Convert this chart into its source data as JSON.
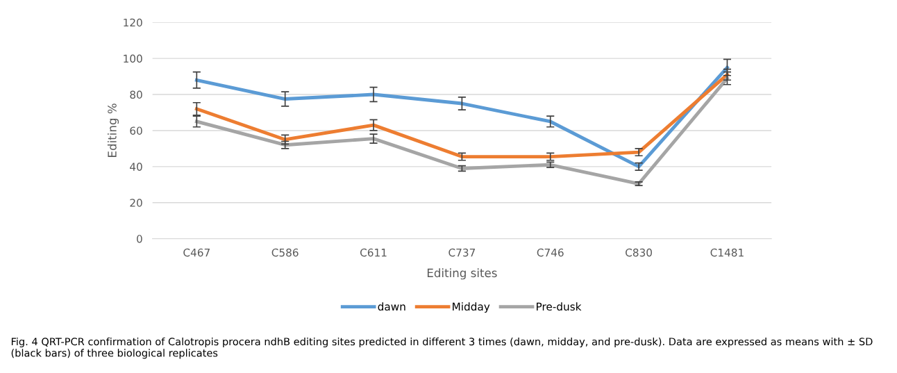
{
  "chart_data": {
    "type": "line",
    "xlabel": "Editing sites",
    "ylabel": "Editing %",
    "categories": [
      "C467",
      "C586",
      "C611",
      "C737",
      "C746",
      "C830",
      "C1481"
    ],
    "series": [
      {
        "name": "dawn",
        "color": "#5b9bd5",
        "values": [
          88,
          77.5,
          80,
          75,
          65,
          40,
          95
        ],
        "errors": [
          4.5,
          4,
          4,
          3.5,
          3,
          2,
          4.5
        ]
      },
      {
        "name": "Midday",
        "color": "#ed7d31",
        "values": [
          72,
          55,
          63,
          45.5,
          45.5,
          48,
          91
        ],
        "errors": [
          3.5,
          2.5,
          3,
          2,
          2,
          2,
          3
        ]
      },
      {
        "name": "Pre-dusk",
        "color": "#a5a5a5",
        "values": [
          65,
          52,
          55.5,
          39,
          41,
          30.5,
          89
        ],
        "errors": [
          3,
          2,
          2.5,
          1.5,
          1.5,
          1,
          3.5
        ]
      }
    ],
    "ylim": [
      0,
      120
    ],
    "yticks": [
      0,
      20,
      40,
      60,
      80,
      100,
      120
    ],
    "grid": "y",
    "legend": "bottom",
    "marker": "none",
    "line_style": "solid",
    "annotations": [
      "Fig. 4 QRT-PCR confirmation of Calotropis procera ndhB editing sites predicted in different 3 times (dawn, midday, and pre-dusk). Data are expressed as means with ± SD (black bars) of three biological replicates"
    ]
  }
}
